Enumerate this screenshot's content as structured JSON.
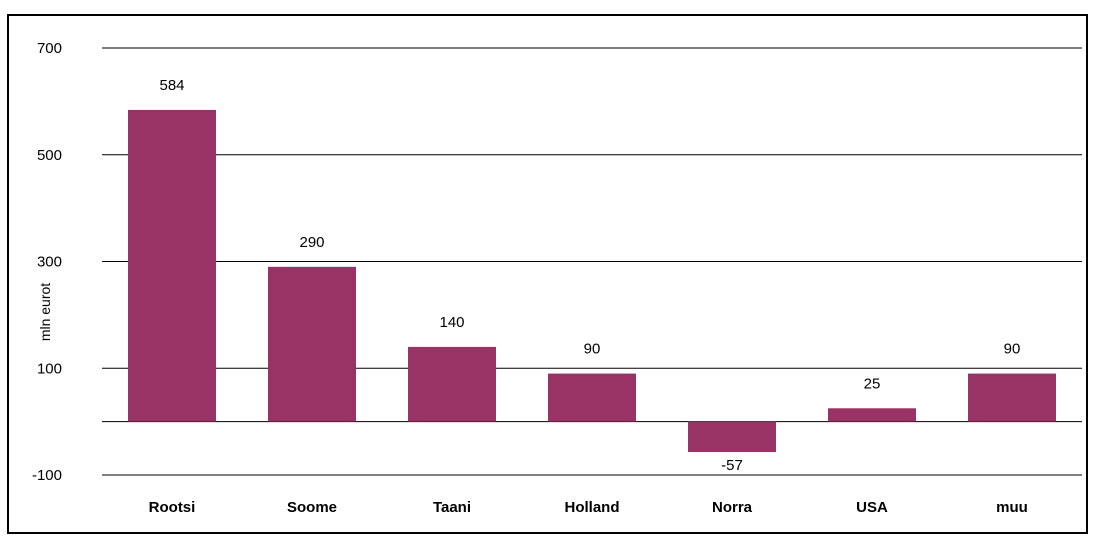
{
  "chart_data": {
    "type": "bar",
    "ylabel": "mln eurot",
    "categories": [
      "Rootsi",
      "Soome",
      "Taani",
      "Holland",
      "Norra",
      "USA",
      "muu"
    ],
    "values": [
      584,
      290,
      140,
      90,
      -57,
      25,
      90
    ],
    "data_labels": [
      "584",
      "290",
      "140",
      "90",
      "-57",
      "25",
      "90"
    ],
    "yticks": [
      700,
      500,
      300,
      100,
      -100
    ],
    "ylim": [
      -100,
      700
    ],
    "grid": true,
    "colors": {
      "bar": "#993366",
      "grid": "#000000"
    }
  }
}
